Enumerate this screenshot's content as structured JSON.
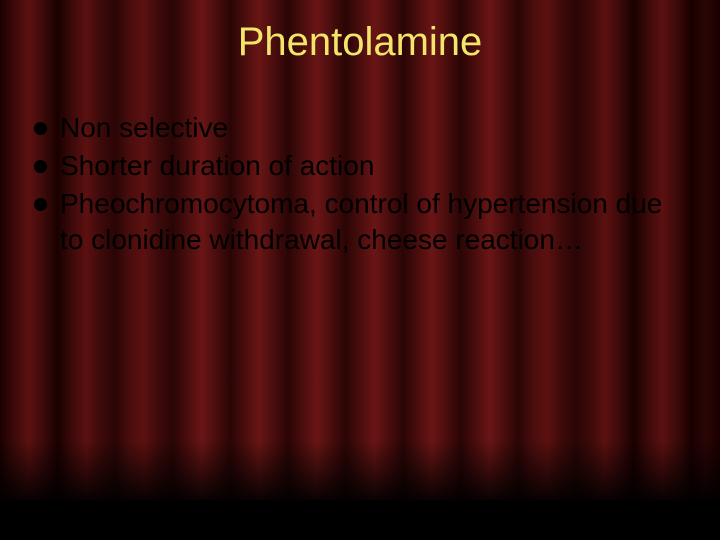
{
  "slide": {
    "title": "Phentolamine",
    "title_color": "#f2e66a",
    "title_fontsize": 40,
    "bullet_fontsize": 28,
    "bullet_line_height": 36,
    "bullet_color": "#000000",
    "bullet_text_color": "#000000",
    "bullets": [
      "Non selective",
      "Shorter duration of action",
      "Pheochromocytoma, control of hypertension due to clonidine withdrawal, cheese reaction…"
    ],
    "background": {
      "type": "curtain",
      "base_color": "#3d0a0a",
      "highlight_color": "#6a1515",
      "shadow_color": "#1a0000",
      "floor_color": "#000000"
    }
  }
}
